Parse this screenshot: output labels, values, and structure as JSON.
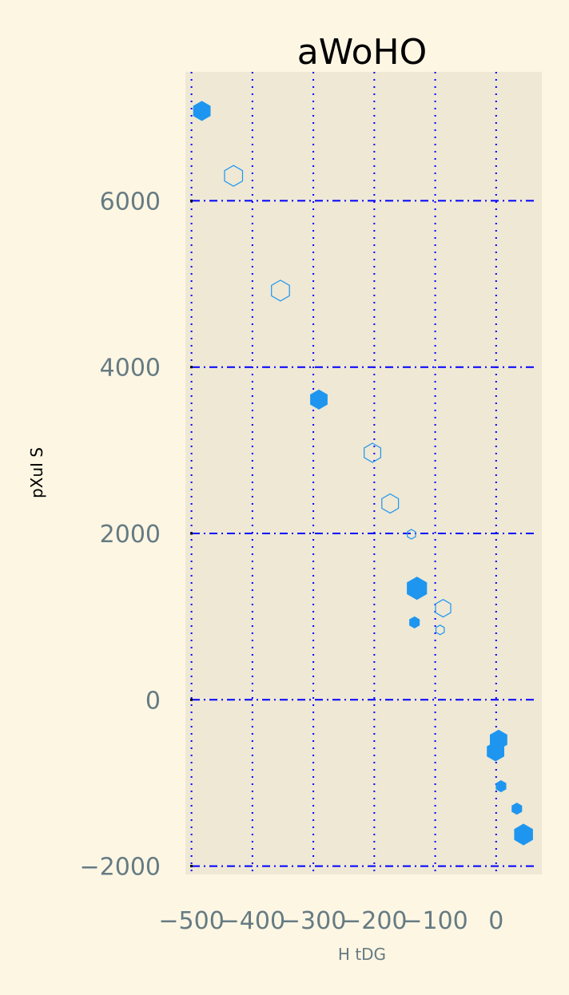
{
  "chart_data": {
    "type": "scatter",
    "title": "aWoHO",
    "xlabel": "H tDG",
    "ylabel": "pXuI S",
    "xlim": [
      -510,
      75
    ],
    "ylim": [
      -2100,
      7550
    ],
    "x_ticks": [
      -500,
      -400,
      -300,
      -200,
      -100,
      0
    ],
    "x_tick_labels": [
      "−500",
      "−400",
      "−300",
      "−200",
      "−100",
      "0"
    ],
    "y_ticks": [
      -2000,
      0,
      2000,
      4000,
      6000
    ],
    "y_tick_labels": [
      "−2000",
      "0",
      "2000",
      "4000",
      "6000"
    ],
    "grid": true,
    "colors": {
      "figure_bg": "#fdf6e3",
      "axes_bg": "#eee8d5",
      "marker": "#1e96f0",
      "grid": "#0000ff",
      "tick_text": "#657b83"
    },
    "marker": "hexagon",
    "points": [
      {
        "x": -483,
        "y": 7080,
        "size": 12,
        "filled": true
      },
      {
        "x": -431,
        "y": 6300,
        "size": 13,
        "filled": false
      },
      {
        "x": -354,
        "y": 4920,
        "size": 13,
        "filled": false
      },
      {
        "x": -291,
        "y": 3610,
        "size": 12,
        "filled": true
      },
      {
        "x": -203,
        "y": 2970,
        "size": 12,
        "filled": false
      },
      {
        "x": -174,
        "y": 2360,
        "size": 12,
        "filled": false
      },
      {
        "x": -139,
        "y": 1990,
        "size": 6,
        "filled": false
      },
      {
        "x": -130,
        "y": 1340,
        "size": 14,
        "filled": true
      },
      {
        "x": -134,
        "y": 930,
        "size": 7,
        "filled": true
      },
      {
        "x": -87,
        "y": 1100,
        "size": 11,
        "filled": false
      },
      {
        "x": -92,
        "y": 840,
        "size": 6,
        "filled": false
      },
      {
        "x": 4,
        "y": -480,
        "size": 12,
        "filled": true
      },
      {
        "x": -1,
        "y": -620,
        "size": 12,
        "filled": true
      },
      {
        "x": 8,
        "y": -1040,
        "size": 7,
        "filled": true
      },
      {
        "x": 34,
        "y": -1310,
        "size": 7,
        "filled": true
      },
      {
        "x": 45,
        "y": -1620,
        "size": 13,
        "filled": true
      }
    ]
  }
}
